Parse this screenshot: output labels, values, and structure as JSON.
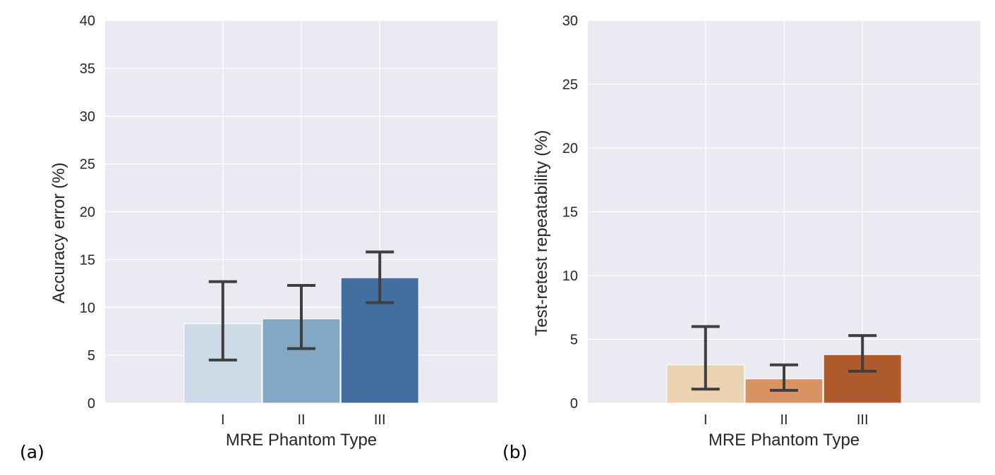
{
  "chart_data": [
    {
      "panel_label": "(a)",
      "type": "bar",
      "xlabel": "MRE Phantom Type",
      "ylabel": "Accuracy error (%)",
      "categories": [
        "I",
        "II",
        "III"
      ],
      "values": [
        8.3,
        8.8,
        13.1
      ],
      "error_low": [
        4.5,
        5.7,
        10.5
      ],
      "error_high": [
        12.7,
        12.3,
        15.8
      ],
      "ylim": [
        0,
        40
      ],
      "yticks": [
        0,
        5,
        10,
        15,
        20,
        25,
        30,
        35,
        40
      ],
      "ytick_labels": [
        "0",
        "5",
        "10",
        "15",
        "20",
        "25",
        "30",
        "35",
        "40"
      ],
      "colors": [
        "#cddbe8",
        "#82a8c5",
        "#436fa0"
      ],
      "error_color": "#3f3f3f",
      "background": "#eaeaf2",
      "grid": true
    },
    {
      "panel_label": "(b)",
      "type": "bar",
      "xlabel": "MRE Phantom Type",
      "ylabel": "Test-retest repeatability (%)",
      "categories": [
        "I",
        "II",
        "III"
      ],
      "values": [
        3.0,
        1.9,
        3.8
      ],
      "error_low": [
        1.1,
        1.0,
        2.5
      ],
      "error_high": [
        6.0,
        3.0,
        5.3
      ],
      "ylim": [
        0,
        30
      ],
      "yticks": [
        0,
        5,
        10,
        15,
        20,
        25,
        30
      ],
      "ytick_labels": [
        "0",
        "5",
        "10",
        "15",
        "20",
        "25",
        "30"
      ],
      "colors": [
        "#ebd3b1",
        "#d79462",
        "#ad5a2d"
      ],
      "error_color": "#3f3f3f",
      "background": "#eaeaf2",
      "grid": true
    }
  ]
}
